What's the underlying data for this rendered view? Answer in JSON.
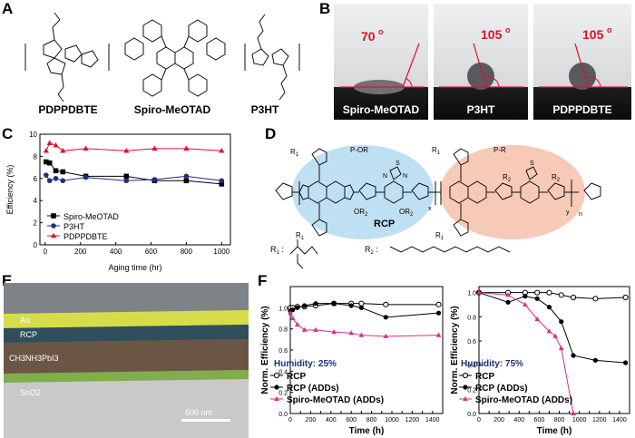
{
  "panel_labels": {
    "a": "A",
    "b": "B",
    "c": "C",
    "d": "D",
    "e": "E",
    "f": "F"
  },
  "molecules": [
    "PDPPDBTE",
    "Spiro-MeOTAD",
    "P3HT"
  ],
  "contact_angle": {
    "photos": [
      {
        "label": "Spiro-MeOTAD",
        "angle": "70",
        "deg": "o"
      },
      {
        "label": "P3HT",
        "angle": "105",
        "deg": "o"
      },
      {
        "label": "PDPPDBTE",
        "angle": "105",
        "deg": "o"
      }
    ],
    "line_color": "#e0102a"
  },
  "structure_d": {
    "label_por": "P-OR",
    "label_pr": "P-R",
    "name": "RCP",
    "r1": "R",
    "r1_sub": "1",
    "r2": "R",
    "r2_sub": "2",
    "or2": "OR",
    "or2_sub": "2",
    "sub_x": "x",
    "sub_y": "y",
    "sub_n": "n",
    "s": "S",
    "n": "N"
  },
  "sem": {
    "layers": [
      "Au",
      "RCP",
      "CH3NH3PbI3",
      "SnO2"
    ],
    "scale": "500 nm"
  },
  "chart_data": [
    {
      "type": "scatter-line",
      "panel": "C",
      "xlabel": "Aging time (hr)",
      "ylabel": "Efficiency (%)",
      "xlim": [
        -30,
        1050
      ],
      "ylim": [
        0,
        10
      ],
      "xticks": [
        0,
        200,
        400,
        600,
        800,
        1000
      ],
      "yticks": [
        0,
        2,
        4,
        6,
        8,
        10
      ],
      "legend_position": "bottom-left",
      "series": [
        {
          "name": "Spiro-MeOTAD",
          "marker": "square",
          "color": "#000000",
          "x": [
            5,
            25,
            60,
            100,
            230,
            460,
            620,
            800,
            1000
          ],
          "y": [
            7.5,
            7.4,
            6.7,
            6.6,
            6.2,
            6.2,
            5.8,
            5.8,
            5.5
          ]
        },
        {
          "name": "P3HT",
          "marker": "circle",
          "color": "#1f2f7a",
          "x": [
            5,
            25,
            60,
            100,
            230,
            460,
            620,
            800,
            1000
          ],
          "y": [
            6.3,
            5.8,
            6.0,
            5.8,
            6.1,
            5.8,
            5.9,
            6.2,
            5.8
          ]
        },
        {
          "name": "PDPPDBTE",
          "marker": "triangle",
          "color": "#e0102a",
          "x": [
            5,
            25,
            60,
            100,
            230,
            460,
            620,
            800,
            1000
          ],
          "y": [
            8.5,
            9.2,
            9.0,
            8.5,
            8.7,
            8.5,
            8.7,
            8.7,
            8.5
          ]
        }
      ]
    },
    {
      "type": "scatter-line",
      "panel": "F-left",
      "xlabel": "Time (h)",
      "ylabel": "Norm. Efficiency (%)",
      "annotation": "Humidity: 25%",
      "xlim": [
        0,
        1500
      ],
      "ylim": [
        0,
        1.2
      ],
      "xticks": [
        0,
        100,
        200,
        300,
        400,
        500,
        600,
        700,
        800,
        900,
        1000,
        1100,
        1200,
        1300,
        1400
      ],
      "xticklabels": [
        "0",
        "",
        "200",
        "",
        "400",
        "",
        "600",
        "",
        "800",
        "",
        "1000",
        "",
        "1200",
        "",
        "1400"
      ],
      "yticks": [
        0.0,
        0.2,
        0.4,
        0.6,
        0.8,
        1.0
      ],
      "legend_position": "bottom-left",
      "series": [
        {
          "name": "RCP",
          "marker": "open-circle",
          "color": "#000000",
          "x": [
            0,
            24,
            70,
            140,
            250,
            430,
            600,
            700,
            940,
            1460
          ],
          "y": [
            1.0,
            1.0,
            1.01,
            1.01,
            1.02,
            1.04,
            1.04,
            1.04,
            1.03,
            1.03
          ]
        },
        {
          "name": "RCP (ADDs)",
          "marker": "filled-circle",
          "color": "#000000",
          "x": [
            0,
            24,
            70,
            140,
            250,
            430,
            600,
            700,
            940,
            1460
          ],
          "y": [
            0.97,
            0.98,
            1.0,
            1.02,
            1.04,
            1.04,
            1.02,
            1.0,
            0.91,
            0.95
          ]
        },
        {
          "name": "Spiro-MeOTAD (ADDs)",
          "marker": "triangle",
          "color": "#d9308a",
          "x": [
            0,
            24,
            70,
            140,
            250,
            430,
            600,
            700,
            940,
            1460
          ],
          "y": [
            0.95,
            0.9,
            0.84,
            0.79,
            0.79,
            0.77,
            0.76,
            0.74,
            0.73,
            0.74
          ]
        }
      ]
    },
    {
      "type": "scatter-line",
      "panel": "F-right",
      "xlabel": "Time (h)",
      "ylabel": "Norm. Efficiency (%)",
      "annotation": "Humidity: 75%",
      "xlim": [
        0,
        1500
      ],
      "ylim": [
        0,
        1.05
      ],
      "xticks": [
        0,
        100,
        200,
        300,
        400,
        500,
        600,
        700,
        800,
        900,
        1000,
        1100,
        1200,
        1300,
        1400
      ],
      "xticklabels": [
        "0",
        "",
        "200",
        "",
        "400",
        "",
        "600",
        "",
        "800",
        "",
        "1000",
        "",
        "1200",
        "",
        "1400"
      ],
      "yticks": [
        0.0,
        0.2,
        0.4,
        0.6,
        0.8,
        1.0
      ],
      "legend_position": "bottom-left",
      "series": [
        {
          "name": "RCP",
          "marker": "open-circle",
          "color": "#000000",
          "x": [
            0,
            290,
            460,
            580,
            700,
            820,
            940,
            1160,
            1460
          ],
          "y": [
            1.0,
            1.0,
            1.0,
            1.0,
            1.0,
            0.98,
            0.96,
            0.95,
            0.96
          ]
        },
        {
          "name": "RCP (ADDs)",
          "marker": "filled-circle",
          "color": "#000000",
          "x": [
            0,
            290,
            460,
            580,
            700,
            820,
            940,
            1160,
            1460
          ],
          "y": [
            1.0,
            0.92,
            0.97,
            0.95,
            0.88,
            0.76,
            0.48,
            0.44,
            0.42
          ]
        },
        {
          "name": "Spiro-MeOTAD (ADDs)",
          "marker": "triangle",
          "color": "#d9308a",
          "x": [
            0,
            290,
            460,
            580,
            700,
            760,
            820,
            940
          ],
          "y": [
            1.0,
            0.98,
            0.9,
            0.78,
            0.68,
            0.64,
            0.54,
            0.0
          ]
        }
      ]
    }
  ]
}
